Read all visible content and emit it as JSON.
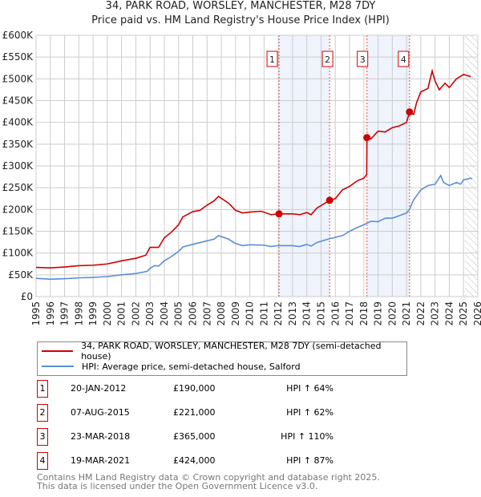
{
  "title": "34, PARK ROAD, WORSLEY, MANCHESTER, M28 7DY",
  "subtitle": "Price paid vs. HM Land Registry's House Price Index (HPI)",
  "chart_data": {
    "type": "line",
    "xlim": [
      1995,
      2026
    ],
    "ylim": [
      0,
      600000
    ],
    "yticks": [
      0,
      50000,
      100000,
      150000,
      200000,
      250000,
      300000,
      350000,
      400000,
      450000,
      500000,
      550000,
      600000
    ],
    "ytick_labels": [
      "£0",
      "£50K",
      "£100K",
      "£150K",
      "£200K",
      "£250K",
      "£300K",
      "£350K",
      "£400K",
      "£450K",
      "£500K",
      "£550K",
      "£600K"
    ],
    "xticks": [
      "1995",
      "1996",
      "1997",
      "1998",
      "1999",
      "2000",
      "2001",
      "2002",
      "2003",
      "2004",
      "2005",
      "2006",
      "2007",
      "2008",
      "2009",
      "2010",
      "2011",
      "2012",
      "2013",
      "2014",
      "2015",
      "2016",
      "2017",
      "2018",
      "2019",
      "2020",
      "2021",
      "2022",
      "2023",
      "2024",
      "2025",
      "2026"
    ],
    "grid": true,
    "series": [
      {
        "name": "34, PARK ROAD, WORSLEY, MANCHESTER, M28 7DY (semi-detached house)",
        "color": "#cc0000",
        "x": [
          1995,
          1996,
          1997,
          1998,
          1999,
          2000,
          2001,
          2002,
          2002.7,
          2003,
          2003.6,
          2004,
          2004.5,
          2005,
          2005.3,
          2006,
          2006.5,
          2007,
          2007.5,
          2007.8,
          2008.5,
          2009,
          2009.5,
          2010,
          2010.8,
          2011.5,
          2012.05,
          2013,
          2013.5,
          2014,
          2014.3,
          2014.7,
          2015.6,
          2016,
          2016.5,
          2017,
          2017.5,
          2018,
          2018.2,
          2018.22,
          2018.5,
          2019,
          2019.5,
          2020,
          2020.5,
          2021,
          2021.21,
          2021.5,
          2021.7,
          2022,
          2022.5,
          2022.8,
          2023,
          2023.3,
          2023.7,
          2024,
          2024.5,
          2025,
          2025.5
        ],
        "y": [
          67000,
          66000,
          68000,
          71000,
          72000,
          75000,
          82000,
          88000,
          95000,
          113000,
          113000,
          135000,
          148000,
          165000,
          183000,
          195000,
          198000,
          210000,
          220000,
          230000,
          215000,
          198000,
          192000,
          194000,
          196000,
          188000,
          190000,
          190000,
          188000,
          193000,
          188000,
          203000,
          221000,
          225000,
          245000,
          253000,
          265000,
          272000,
          280000,
          365000,
          362000,
          380000,
          378000,
          388000,
          392000,
          400000,
          424000,
          418000,
          445000,
          470000,
          478000,
          518000,
          495000,
          475000,
          490000,
          480000,
          500000,
          510000,
          505000
        ]
      },
      {
        "name": "HPI: Average price, semi-detached house, Salford",
        "color": "#5b8fd4",
        "x": [
          1995,
          1996,
          1997,
          1998,
          1999,
          2000,
          2001,
          2002,
          2002.8,
          2003,
          2003.3,
          2003.6,
          2004,
          2004.5,
          2005,
          2005.3,
          2006,
          2007,
          2007.5,
          2007.8,
          2008.5,
          2009,
          2009.5,
          2010,
          2011,
          2011.5,
          2012,
          2013,
          2013.5,
          2014,
          2014.3,
          2014.7,
          2015.5,
          2016.5,
          2017,
          2017.5,
          2018,
          2018.5,
          2019,
          2019.5,
          2020,
          2020.5,
          2021,
          2021.2,
          2021.5,
          2022,
          2022.5,
          2023,
          2023.2,
          2023.4,
          2023.6,
          2024,
          2024.5,
          2024.8,
          2025,
          2025.5,
          2025.6
        ],
        "y": [
          42000,
          40000,
          41000,
          43000,
          44000,
          46000,
          50000,
          53000,
          58000,
          65000,
          71000,
          70000,
          82000,
          92000,
          104000,
          114000,
          120000,
          128000,
          132000,
          140000,
          132000,
          122000,
          117000,
          119000,
          118000,
          115000,
          117000,
          117000,
          115000,
          120000,
          116000,
          124000,
          132000,
          140000,
          150000,
          158000,
          165000,
          173000,
          172000,
          180000,
          180000,
          186000,
          192000,
          200000,
          222000,
          245000,
          255000,
          258000,
          268000,
          278000,
          262000,
          255000,
          262000,
          258000,
          268000,
          272000,
          270000
        ]
      }
    ],
    "sales": [
      {
        "n": "1",
        "x": 2012.05,
        "y": 190000
      },
      {
        "n": "2",
        "x": 2015.6,
        "y": 221000
      },
      {
        "n": "3",
        "x": 2018.22,
        "y": 365000
      },
      {
        "n": "4",
        "x": 2021.21,
        "y": 424000
      }
    ],
    "shaded_ranges": [
      [
        2012.05,
        2015.6
      ],
      [
        2018.22,
        2021.21
      ]
    ],
    "hatched_from": 2025.1
  },
  "legend": [
    "34, PARK ROAD, WORSLEY, MANCHESTER, M28 7DY (semi-detached house)",
    "HPI: Average price, semi-detached house, Salford"
  ],
  "transactions": [
    {
      "n": "1",
      "date": "20-JAN-2012",
      "price": "£190,000",
      "hpi": "64% ↑ HPI"
    },
    {
      "n": "2",
      "date": "07-AUG-2015",
      "price": "£221,000",
      "hpi": "62% ↑ HPI"
    },
    {
      "n": "3",
      "date": "23-MAR-2018",
      "price": "£365,000",
      "hpi": "110% ↑ HPI"
    },
    {
      "n": "4",
      "date": "19-MAR-2021",
      "price": "£424,000",
      "hpi": "87% ↑ HPI"
    }
  ],
  "footer": [
    "Contains HM Land Registry data © Crown copyright and database right 2025.",
    "This data is licensed under the Open Government Licence v3.0."
  ]
}
